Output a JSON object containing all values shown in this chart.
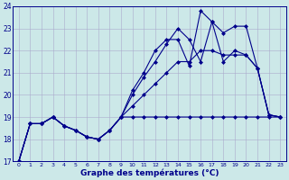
{
  "xlabel": "Graphe des températures (°C)",
  "bg_color": "#cce8e8",
  "line_color": "#00008b",
  "grid_color": "#aaaacc",
  "xlim": [
    -0.5,
    23.5
  ],
  "ylim": [
    17,
    24
  ],
  "yticks": [
    17,
    18,
    19,
    20,
    21,
    22,
    23,
    24
  ],
  "xticks": [
    0,
    1,
    2,
    3,
    4,
    5,
    6,
    7,
    8,
    9,
    10,
    11,
    12,
    13,
    14,
    15,
    16,
    17,
    18,
    19,
    20,
    21,
    22,
    23
  ],
  "series": [
    {
      "x": [
        0,
        1,
        2,
        3,
        4,
        5,
        6,
        7,
        8,
        9,
        10,
        11,
        12,
        13,
        14,
        15,
        16,
        17,
        18,
        19,
        20,
        21,
        22,
        23
      ],
      "y": [
        17.0,
        18.7,
        18.7,
        19.0,
        18.6,
        18.4,
        18.1,
        18.0,
        18.4,
        19.0,
        19.0,
        19.0,
        19.0,
        19.0,
        19.0,
        19.0,
        19.0,
        19.0,
        19.0,
        19.0,
        19.0,
        19.0,
        19.0,
        19.0
      ]
    },
    {
      "x": [
        0,
        1,
        2,
        3,
        4,
        5,
        6,
        7,
        8,
        9,
        10,
        11,
        12,
        13,
        14,
        15,
        16,
        17,
        18,
        19,
        20,
        21,
        22,
        23
      ],
      "y": [
        17.0,
        18.7,
        18.7,
        19.0,
        18.6,
        18.4,
        18.1,
        18.0,
        18.4,
        19.0,
        19.5,
        20.0,
        20.5,
        21.0,
        21.5,
        21.5,
        22.0,
        22.0,
        21.8,
        21.8,
        21.8,
        21.2,
        19.1,
        19.0
      ]
    },
    {
      "x": [
        0,
        1,
        2,
        3,
        4,
        5,
        6,
        7,
        8,
        9,
        10,
        11,
        12,
        13,
        14,
        15,
        16,
        17,
        18,
        19,
        20,
        21,
        22,
        23
      ],
      "y": [
        17.0,
        18.7,
        18.7,
        19.0,
        18.6,
        18.4,
        18.1,
        18.0,
        18.4,
        19.0,
        20.0,
        20.8,
        21.5,
        22.3,
        23.0,
        22.5,
        21.5,
        23.3,
        22.8,
        23.1,
        23.1,
        21.2,
        19.1,
        19.0
      ]
    },
    {
      "x": [
        0,
        1,
        2,
        3,
        4,
        5,
        6,
        7,
        8,
        9,
        10,
        11,
        12,
        13,
        14,
        15,
        16,
        17,
        18,
        19,
        20,
        21,
        22,
        23
      ],
      "y": [
        17.0,
        18.7,
        18.7,
        19.0,
        18.6,
        18.4,
        18.1,
        18.0,
        18.4,
        19.0,
        20.2,
        21.0,
        22.0,
        22.5,
        22.5,
        21.3,
        23.8,
        23.3,
        21.5,
        22.0,
        21.8,
        21.2,
        19.1,
        19.0
      ]
    }
  ]
}
